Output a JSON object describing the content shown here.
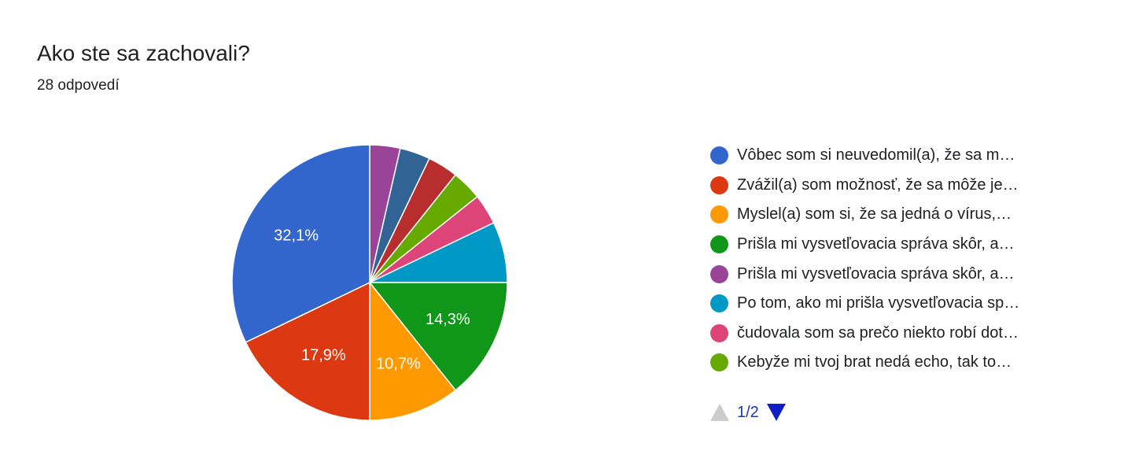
{
  "header": {
    "title": "Ako ste sa zachovali?",
    "subtitle": "28 odpovedí"
  },
  "chart_data": {
    "type": "pie",
    "total_responses": 28,
    "slices": [
      {
        "label": "Vôbec som si neuvedomil(a), že sa m…",
        "percent": 32.1,
        "count": 9,
        "color": "#3366cc",
        "data_label": "32,1%"
      },
      {
        "label": "Zvážil(a) som možnosť, že sa môže je…",
        "percent": 17.9,
        "count": 5,
        "color": "#dc3912",
        "data_label": "17,9%"
      },
      {
        "label": "Myslel(a) som si, že sa jedná o vírus,…",
        "percent": 10.7,
        "count": 3,
        "color": "#ff9900",
        "data_label": "10,7%"
      },
      {
        "label": "Prišla mi vysvetľovacia správa skôr, a…",
        "percent": 14.3,
        "count": 4,
        "color": "#109618",
        "data_label": "14,3%"
      },
      {
        "label": "Po tom, ako mi prišla vysvetľovacia sp…",
        "percent": 7.1,
        "count": 2,
        "color": "#0099c6",
        "data_label": ""
      },
      {
        "label": "čudovala som sa prečo niekto robí dot…",
        "percent": 3.6,
        "count": 1,
        "color": "#dd4477",
        "data_label": ""
      },
      {
        "label": "Kebyže mi tvoj brat nedá echo, tak to…",
        "percent": 3.6,
        "count": 1,
        "color": "#66aa00",
        "data_label": ""
      },
      {
        "label": "",
        "percent": 3.6,
        "count": 1,
        "color": "#b82e2e",
        "data_label": ""
      },
      {
        "label": "",
        "percent": 3.6,
        "count": 1,
        "color": "#316395",
        "data_label": ""
      },
      {
        "label": "Prišla mi vysvetľovacia správa skôr, a…",
        "percent": 3.6,
        "count": 1,
        "color": "#994499",
        "data_label": ""
      }
    ],
    "legend_order": [
      0,
      1,
      2,
      3,
      9,
      4,
      5,
      6
    ],
    "legend_position": "right"
  },
  "legend": {
    "pager": {
      "page_text": "1/2",
      "up_icon": "triangle-up-icon",
      "down_icon": "triangle-down-icon"
    }
  }
}
